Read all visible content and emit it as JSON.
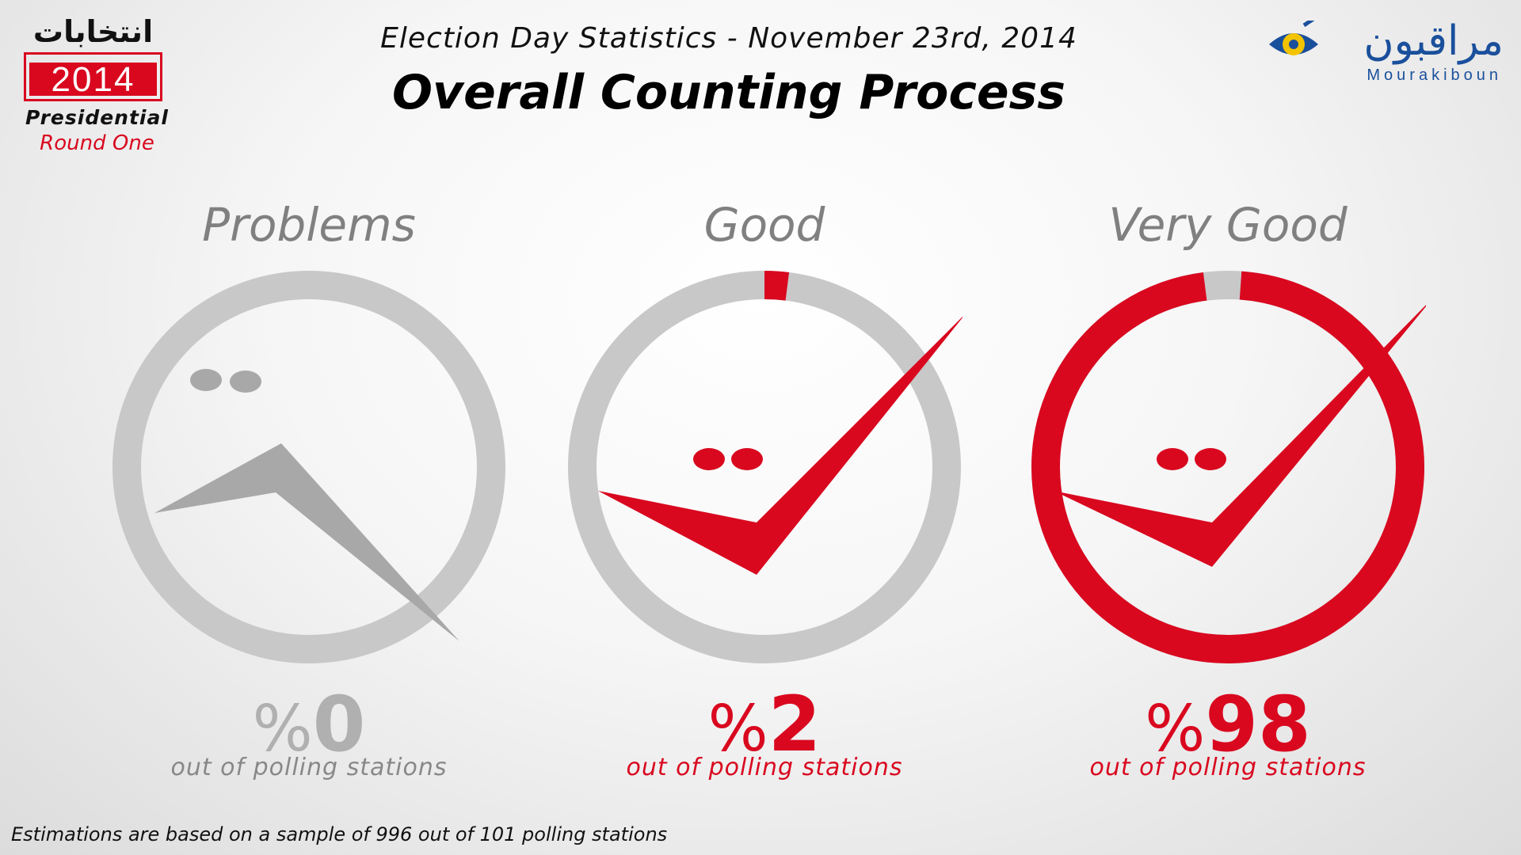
{
  "header": {
    "subtitle": "Election Day Statistics - November 23rd, 2014",
    "title": "Overall Counting Process"
  },
  "logo_left": {
    "arabic": "انتخابات",
    "year": "2014",
    "line1": "Presidential",
    "line2": "Round One"
  },
  "logo_right": {
    "arabic": "مراقبون",
    "latin": "Mourakiboun"
  },
  "colors": {
    "accent": "#d9081f",
    "muted": "#c8c8c8",
    "label": "#808080",
    "brand": "#1a4f9c",
    "logo_yellow": "#f3c300"
  },
  "chart_data": {
    "type": "pie",
    "categories": [
      "Problems",
      "Good",
      "Very Good"
    ],
    "values": [
      0,
      2,
      98
    ],
    "unit": "%",
    "value_labels": [
      "%0",
      "%2",
      "%98"
    ],
    "caption": "out of polling stations"
  },
  "footnote": "Estimations are based on a sample of 996 out of 101 polling stations"
}
